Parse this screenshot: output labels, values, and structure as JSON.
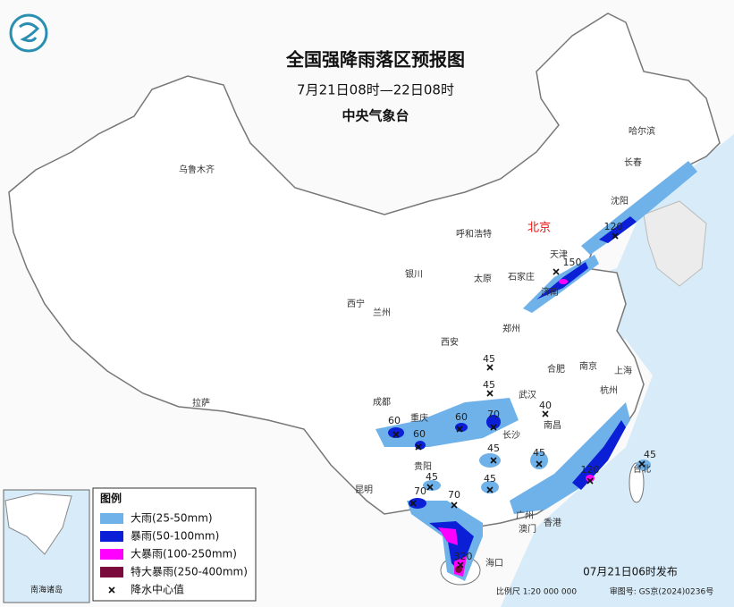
{
  "header": {
    "title": "全国强降雨落区预报图",
    "period": "7月21日08时—22日08时",
    "issuer": "中央气象台"
  },
  "cities": [
    "乌鲁木齐",
    "哈尔滨",
    "长春",
    "沈阳",
    "北京",
    "天津",
    "呼和浩特",
    "石家庄",
    "太原",
    "济南",
    "银川",
    "西宁",
    "兰州",
    "西安",
    "郑州",
    "合肥",
    "南京",
    "上海",
    "杭州",
    "武汉",
    "成都",
    "重庆",
    "拉萨",
    "长沙",
    "南昌",
    "贵阳",
    "昆明",
    "广州",
    "澳门",
    "香港",
    "台北",
    "海口"
  ],
  "rain_centers": [
    120,
    150,
    45,
    45,
    40,
    60,
    60,
    60,
    70,
    45,
    45,
    45,
    120,
    45,
    45,
    70,
    70,
    320
  ],
  "inset": {
    "caption": "南海诸岛"
  },
  "legend": {
    "title": "图例",
    "items": [
      "大雨(25-50mm)",
      "暴雨(50-100mm)",
      "大暴雨(100-250mm)",
      "特大暴雨(250-400mm)",
      "降水中心值"
    ]
  },
  "footer": {
    "issued": "07月21日06时发布",
    "scale": "比例尺 1:20 000 000",
    "approval": "审图号: GS京(2024)0236号"
  }
}
